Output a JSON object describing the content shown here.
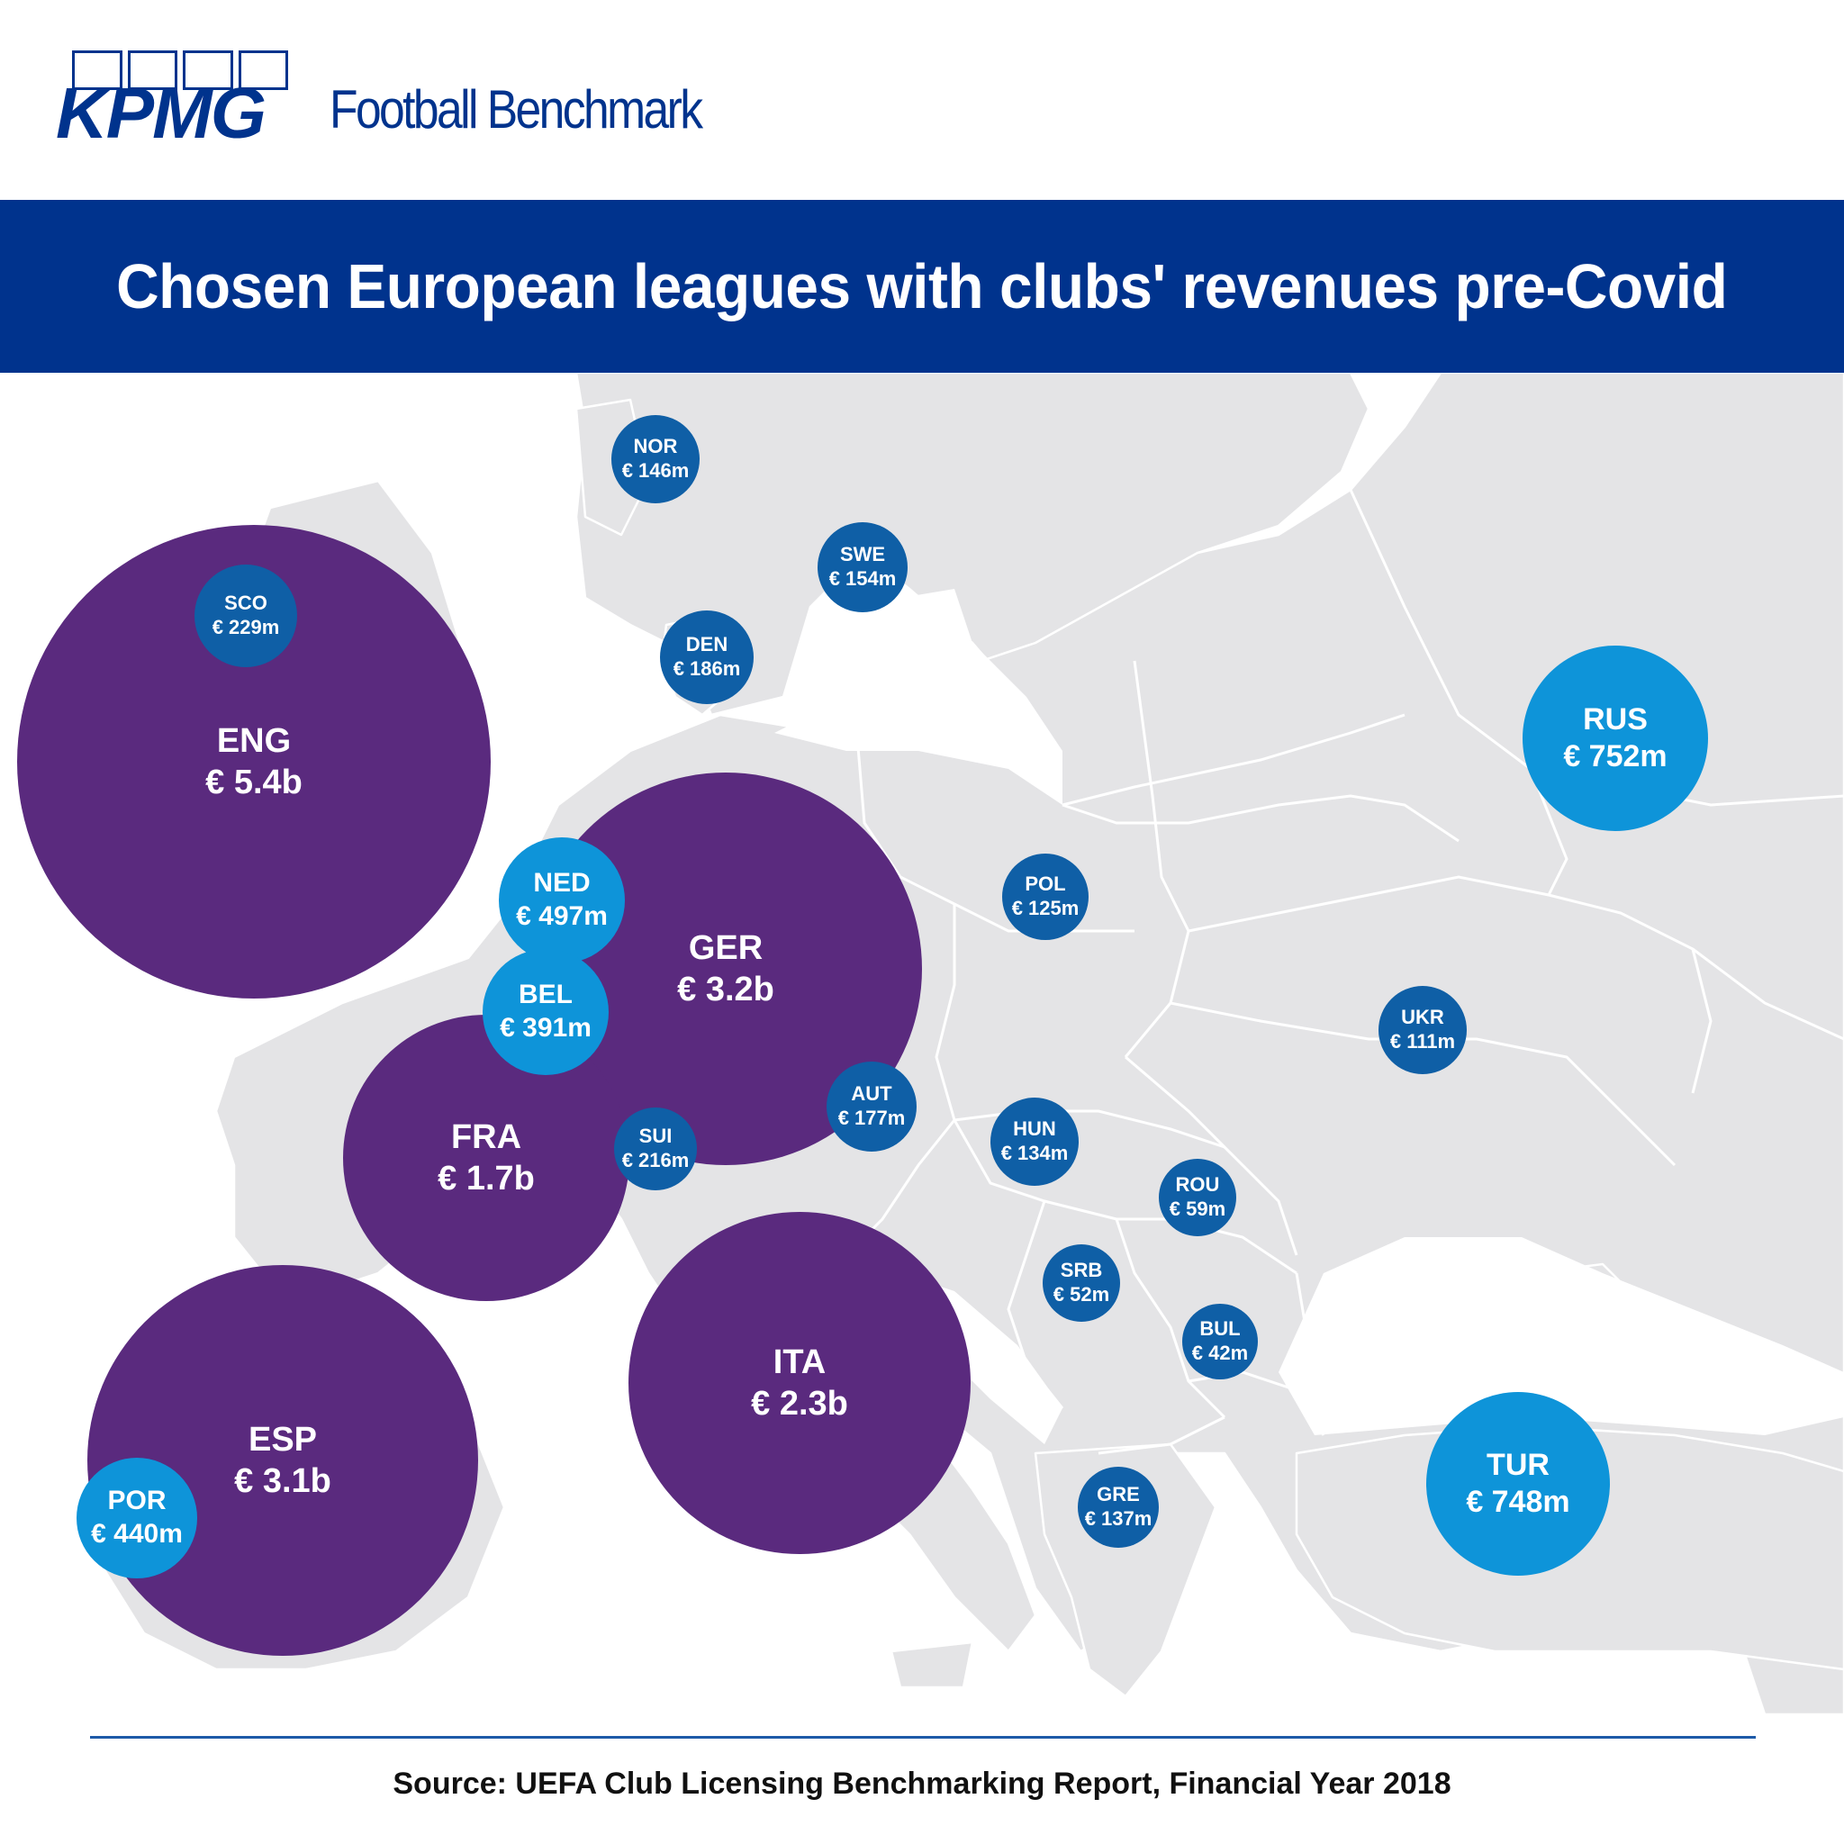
{
  "brand": {
    "logo_text": "KPMG",
    "subtitle": "Football Benchmark",
    "color": "#00338d"
  },
  "title": "Chosen European leagues with clubs' revenues pre-Covid",
  "colors": {
    "title_band": "#00338d",
    "big_bubble": "#5a2a7e",
    "mid_bubble": "#0e94d9",
    "small_bubble": "#0f5fa6",
    "land": "#e4e4e6",
    "sea": "#ffffff",
    "borders": "#ffffff"
  },
  "leagues": [
    {
      "code": "ENG",
      "revenue": "€ 5.4b",
      "revenue_eur_m": 5400
    },
    {
      "code": "GER",
      "revenue": "€ 3.2b",
      "revenue_eur_m": 3200
    },
    {
      "code": "ESP",
      "revenue": "€ 3.1b",
      "revenue_eur_m": 3100
    },
    {
      "code": "ITA",
      "revenue": "€ 2.3b",
      "revenue_eur_m": 2300
    },
    {
      "code": "FRA",
      "revenue": "€ 1.7b",
      "revenue_eur_m": 1700
    },
    {
      "code": "RUS",
      "revenue": "€ 752m",
      "revenue_eur_m": 752
    },
    {
      "code": "TUR",
      "revenue": "€ 748m",
      "revenue_eur_m": 748
    },
    {
      "code": "NED",
      "revenue": "€ 497m",
      "revenue_eur_m": 497
    },
    {
      "code": "POR",
      "revenue": "€ 440m",
      "revenue_eur_m": 440
    },
    {
      "code": "BEL",
      "revenue": "€ 391m",
      "revenue_eur_m": 391
    },
    {
      "code": "SCO",
      "revenue": "€ 229m",
      "revenue_eur_m": 229
    },
    {
      "code": "SUI",
      "revenue": "€ 216m",
      "revenue_eur_m": 216
    },
    {
      "code": "DEN",
      "revenue": "€ 186m",
      "revenue_eur_m": 186
    },
    {
      "code": "AUT",
      "revenue": "€ 177m",
      "revenue_eur_m": 177
    },
    {
      "code": "SWE",
      "revenue": "€ 154m",
      "revenue_eur_m": 154
    },
    {
      "code": "NOR",
      "revenue": "€ 146m",
      "revenue_eur_m": 146
    },
    {
      "code": "GRE",
      "revenue": "€ 137m",
      "revenue_eur_m": 137
    },
    {
      "code": "HUN",
      "revenue": "€ 134m",
      "revenue_eur_m": 134
    },
    {
      "code": "POL",
      "revenue": "€ 125m",
      "revenue_eur_m": 125
    },
    {
      "code": "UKR",
      "revenue": "€ 111m",
      "revenue_eur_m": 111
    },
    {
      "code": "ROU",
      "revenue": "€ 59m",
      "revenue_eur_m": 59
    },
    {
      "code": "SRB",
      "revenue": "€ 52m",
      "revenue_eur_m": 52
    },
    {
      "code": "BUL",
      "revenue": "€ 42m",
      "revenue_eur_m": 42
    }
  ],
  "source": "Source: UEFA Club Licensing Benchmarking Report, Financial Year 2018"
}
